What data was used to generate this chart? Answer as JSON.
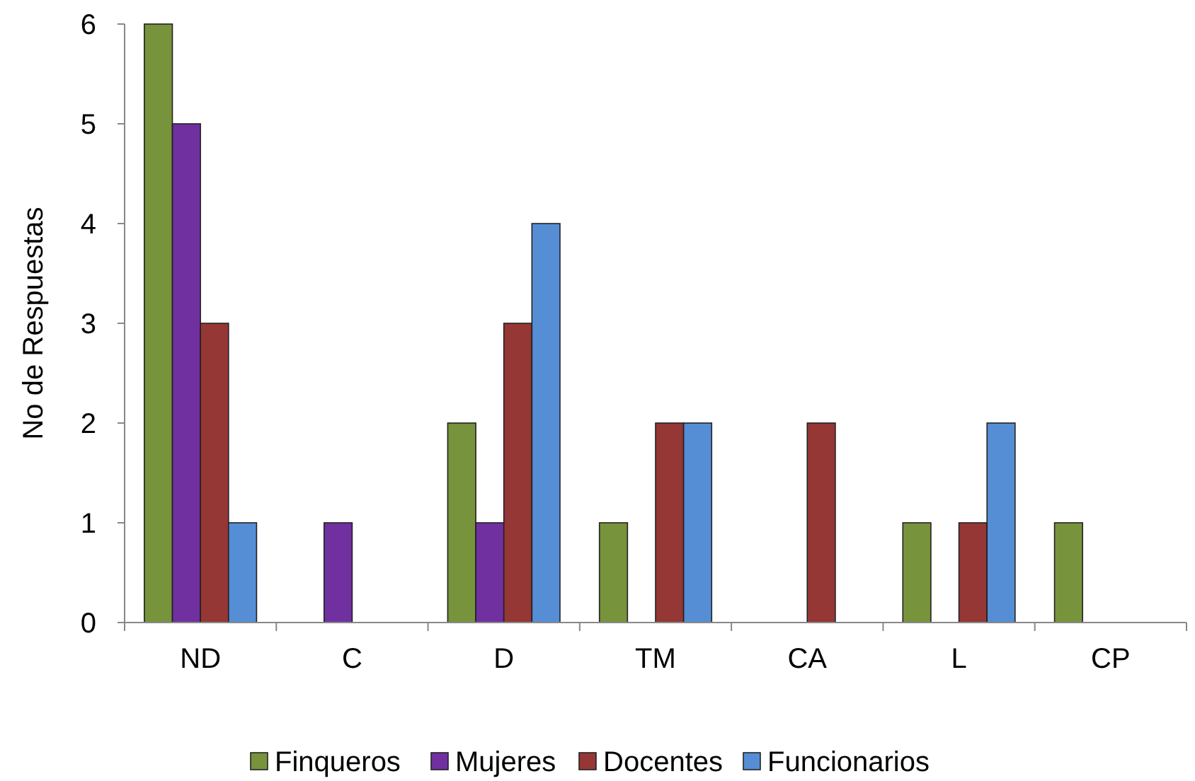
{
  "chart_data": {
    "type": "bar",
    "ylabel": "No de Respuestas",
    "categories": [
      "ND",
      "C",
      "D",
      "TM",
      "CA",
      "L",
      "CP"
    ],
    "series": [
      {
        "name": "Finqueros",
        "color": "#77933c",
        "values": [
          6,
          0,
          2,
          1,
          0,
          1,
          1
        ]
      },
      {
        "name": "Mujeres",
        "color": "#7030a0",
        "values": [
          5,
          1,
          1,
          0,
          0,
          0,
          0
        ]
      },
      {
        "name": "Docentes",
        "color": "#953735",
        "values": [
          3,
          0,
          3,
          2,
          2,
          1,
          0
        ]
      },
      {
        "name": "Funcionarios",
        "color": "#558ed5",
        "values": [
          1,
          0,
          4,
          2,
          0,
          2,
          0
        ]
      }
    ],
    "ylim": [
      0,
      6
    ],
    "yticks": [
      0,
      1,
      2,
      3,
      4,
      5,
      6
    ],
    "grid": false,
    "legend": "bottom"
  }
}
